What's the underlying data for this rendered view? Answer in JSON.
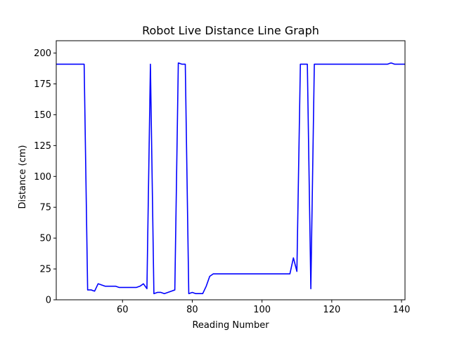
{
  "chart_data": {
    "type": "line",
    "title": "Robot Live Distance Line Graph",
    "xlabel": "Reading Number",
    "ylabel": "Distance (cm)",
    "xlim": [
      41,
      141
    ],
    "ylim": [
      0,
      210
    ],
    "x_ticks": [
      60,
      80,
      100,
      120,
      140
    ],
    "y_ticks": [
      0,
      25,
      50,
      75,
      100,
      125,
      150,
      175,
      200
    ],
    "grid": false,
    "legend": "none",
    "line_color": "#0000ff",
    "series": [
      {
        "x": [
          41,
          42,
          43,
          44,
          45,
          46,
          47,
          48,
          49,
          50,
          51,
          52,
          53,
          54,
          55,
          56,
          57,
          58,
          59,
          60,
          61,
          62,
          63,
          64,
          65,
          66,
          67,
          68,
          69,
          70,
          71,
          72,
          73,
          74,
          75,
          76,
          77,
          78,
          79,
          80,
          81,
          82,
          83,
          84,
          85,
          86,
          87,
          88,
          89,
          90,
          91,
          92,
          93,
          94,
          95,
          96,
          97,
          98,
          99,
          100,
          101,
          102,
          103,
          104,
          105,
          106,
          107,
          108,
          109,
          110,
          111,
          112,
          113,
          114,
          115,
          116,
          117,
          118,
          119,
          120,
          121,
          122,
          123,
          124,
          125,
          126,
          127,
          128,
          129,
          130,
          131,
          132,
          133,
          134,
          135,
          136,
          137,
          138,
          139,
          140,
          141
        ],
        "y": [
          191,
          191,
          191,
          191,
          191,
          191,
          191,
          191,
          191,
          8,
          8,
          7,
          13,
          12,
          11,
          11,
          11,
          11,
          10,
          10,
          10,
          10,
          10,
          10,
          11,
          13,
          9,
          191,
          5,
          6,
          6,
          5,
          6,
          7,
          8,
          192,
          191,
          191,
          5,
          6,
          5,
          5,
          5,
          11,
          19,
          21,
          21,
          21,
          21,
          21,
          21,
          21,
          21,
          21,
          21,
          21,
          21,
          21,
          21,
          21,
          21,
          21,
          21,
          21,
          21,
          21,
          21,
          21,
          34,
          23,
          191,
          191,
          191,
          9,
          191,
          191,
          191,
          191,
          191,
          191,
          191,
          191,
          191,
          191,
          191,
          191,
          191,
          191,
          191,
          191,
          191,
          191,
          191,
          191,
          191,
          191,
          192,
          191,
          191,
          191,
          191
        ]
      }
    ]
  }
}
